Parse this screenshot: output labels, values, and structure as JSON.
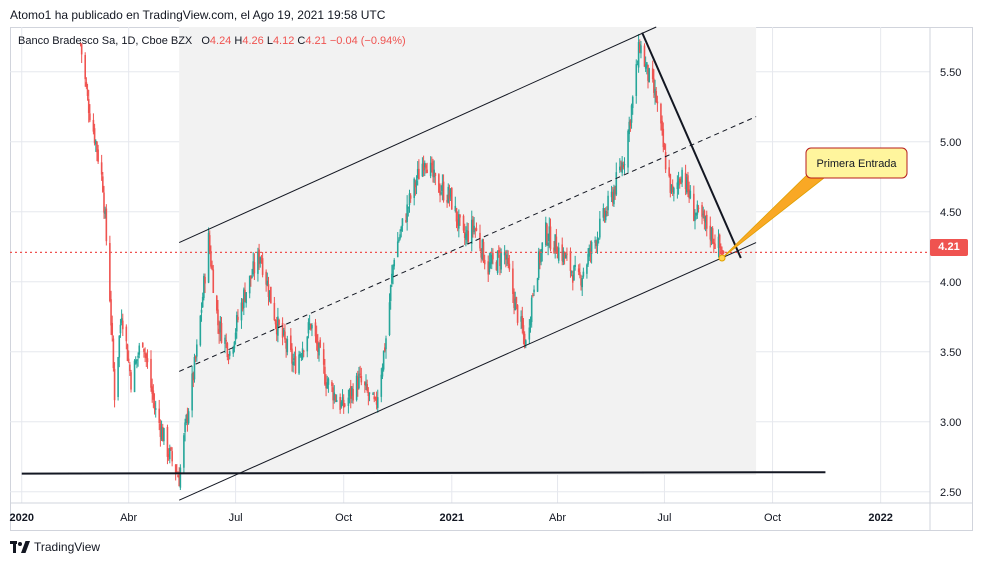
{
  "header": {
    "published_by": "Atomo1 ha publicado en TradingView.com, el Ago 19, 2021 19:58 UTC"
  },
  "legend": {
    "symbol": "Banco Bradesco Sa, 1D, Cboe BZX",
    "open_label": "O",
    "open": "4.24",
    "high_label": "H",
    "high": "4.26",
    "low_label": "L",
    "low": "4.12",
    "close_label": "C",
    "close": "4.21",
    "change": "−0.04 (−0.94%)"
  },
  "price_tag": "4.21",
  "annotation": {
    "text": "Primera Entrada"
  },
  "footer": {
    "brand": "TradingView"
  },
  "colors": {
    "up": "#26a69a",
    "down": "#ef5350",
    "channel_fill": "#f2f2f2",
    "callout_fill": "#fff59d",
    "callout_border": "#b71c1c",
    "callout_arrow": "#f9a825"
  },
  "chart_data": {
    "type": "candlestick",
    "x_tick_labels": [
      "2020",
      "Abr",
      "Jul",
      "Oct",
      "2021",
      "Abr",
      "Jul",
      "Oct",
      "2022"
    ],
    "y_tick_labels": [
      "5.50",
      "5.00",
      "4.50",
      "4.00",
      "3.50",
      "3.00",
      "2.50"
    ],
    "y_ticks": [
      5.5,
      5.0,
      4.5,
      4.0,
      3.5,
      3.0,
      2.5
    ],
    "ylim": [
      2.42,
      5.82
    ],
    "last_price": 4.21,
    "support_level": 2.63,
    "price_path": [
      [
        "2020-02-20",
        5.7
      ],
      [
        "2020-02-26",
        5.3
      ],
      [
        "2020-03-04",
        5.0
      ],
      [
        "2020-03-10",
        4.7
      ],
      [
        "2020-03-16",
        3.9
      ],
      [
        "2020-03-20",
        3.2
      ],
      [
        "2020-03-26",
        3.8
      ],
      [
        "2020-04-03",
        3.3
      ],
      [
        "2020-04-13",
        3.6
      ],
      [
        "2020-04-23",
        3.1
      ],
      [
        "2020-05-04",
        2.8
      ],
      [
        "2020-05-14",
        2.6
      ],
      [
        "2020-05-20",
        3.0
      ],
      [
        "2020-05-29",
        3.5
      ],
      [
        "2020-06-08",
        4.3
      ],
      [
        "2020-06-16",
        3.7
      ],
      [
        "2020-06-26",
        3.5
      ],
      [
        "2020-07-08",
        3.9
      ],
      [
        "2020-07-22",
        4.2
      ],
      [
        "2020-08-05",
        3.7
      ],
      [
        "2020-08-20",
        3.4
      ],
      [
        "2020-09-03",
        3.7
      ],
      [
        "2020-09-16",
        3.3
      ],
      [
        "2020-09-30",
        3.1
      ],
      [
        "2020-10-14",
        3.3
      ],
      [
        "2020-10-28",
        3.1
      ],
      [
        "2020-11-06",
        3.6
      ],
      [
        "2020-11-13",
        4.2
      ],
      [
        "2020-11-27",
        4.6
      ],
      [
        "2020-12-09",
        4.9
      ],
      [
        "2020-12-18",
        4.7
      ],
      [
        "2020-12-31",
        4.6
      ],
      [
        "2021-01-11",
        4.3
      ],
      [
        "2021-01-20",
        4.4
      ],
      [
        "2021-02-01",
        4.1
      ],
      [
        "2021-02-15",
        4.2
      ],
      [
        "2021-02-25",
        3.8
      ],
      [
        "2021-03-05",
        3.55
      ],
      [
        "2021-03-12",
        4.0
      ],
      [
        "2021-03-22",
        4.35
      ],
      [
        "2021-04-05",
        4.2
      ],
      [
        "2021-04-19",
        4.0
      ],
      [
        "2021-05-03",
        4.3
      ],
      [
        "2021-05-17",
        4.6
      ],
      [
        "2021-05-28",
        4.9
      ],
      [
        "2021-06-04",
        5.3
      ],
      [
        "2021-06-10",
        5.7
      ],
      [
        "2021-06-16",
        5.5
      ],
      [
        "2021-06-24",
        5.3
      ],
      [
        "2021-07-01",
        4.9
      ],
      [
        "2021-07-08",
        4.6
      ],
      [
        "2021-07-16",
        4.8
      ],
      [
        "2021-07-26",
        4.5
      ],
      [
        "2021-08-06",
        4.4
      ],
      [
        "2021-08-19",
        4.21
      ]
    ],
    "drawings": [
      {
        "type": "channel_upper",
        "from": [
          "2020-05-14",
          4.28
        ],
        "to": [
          "2021-06-24",
          5.82
        ]
      },
      {
        "type": "channel_mid_dashed",
        "from": [
          "2020-05-14",
          3.36
        ],
        "to": [
          "2021-09-17",
          5.18
        ]
      },
      {
        "type": "channel_lower",
        "from": [
          "2020-05-14",
          2.44
        ],
        "to": [
          "2021-09-17",
          4.28
        ]
      },
      {
        "type": "downtrend",
        "from": [
          "2021-06-12",
          5.78
        ],
        "to": [
          "2021-09-04",
          4.17
        ]
      },
      {
        "type": "support_horizontal",
        "from": [
          "2020-01-01",
          2.63
        ],
        "to": [
          "2021-11-15",
          2.64
        ]
      }
    ],
    "channel_shading": {
      "from": "2020-05-14",
      "to": "2021-09-17"
    },
    "horizontal_price_line": {
      "price": 4.21,
      "style": "dotted"
    },
    "callout": {
      "anchor": [
        "2021-08-19",
        4.17
      ]
    }
  }
}
